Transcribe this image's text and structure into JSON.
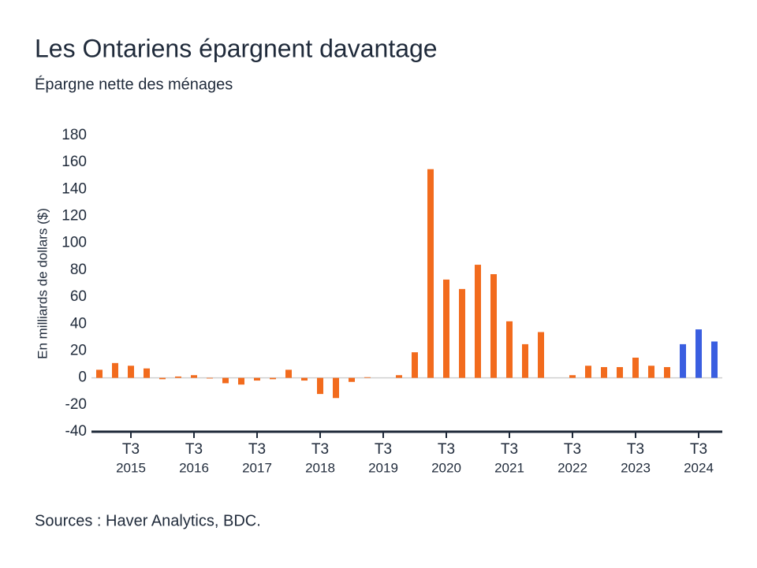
{
  "chart_data": {
    "type": "bar",
    "title": "Les Ontariens épargnent davantage",
    "subtitle": "Épargne nette des ménages",
    "y_label": "En milliards de dollars ($)",
    "source": "Sources : Haver Analytics, BDC.",
    "categories": [
      null,
      null,
      "T3",
      null,
      null,
      null,
      "T3",
      null,
      null,
      null,
      "T3",
      null,
      null,
      null,
      "T3",
      null,
      null,
      null,
      "T3",
      null,
      null,
      null,
      "T3",
      null,
      null,
      null,
      "T3",
      null,
      null,
      null,
      "T3",
      null,
      null,
      null,
      "T3",
      null,
      null,
      null,
      "T3",
      null
    ],
    "years": [
      null,
      null,
      "2015",
      null,
      null,
      null,
      "2016",
      null,
      null,
      null,
      "2017",
      null,
      null,
      null,
      "2018",
      null,
      null,
      null,
      "2019",
      null,
      null,
      null,
      "2020",
      null,
      null,
      null,
      "2021",
      null,
      null,
      null,
      "2022",
      null,
      null,
      null,
      "2023",
      null,
      null,
      null,
      "2024",
      null
    ],
    "values": [
      6,
      11,
      9,
      7,
      -1,
      1,
      2,
      -0.5,
      -4,
      -5,
      -2,
      -1,
      6,
      -2,
      -12,
      -15,
      -3,
      0.5,
      0,
      2,
      19,
      155,
      73,
      66,
      84,
      77,
      42,
      25,
      34,
      0,
      2,
      9,
      8,
      8,
      15,
      9,
      8,
      25,
      36,
      27
    ],
    "colors": [
      "#f26b1d",
      "#f26b1d",
      "#f26b1d",
      "#f26b1d",
      "#f26b1d",
      "#f26b1d",
      "#f26b1d",
      "#f26b1d",
      "#f26b1d",
      "#f26b1d",
      "#f26b1d",
      "#f26b1d",
      "#f26b1d",
      "#f26b1d",
      "#f26b1d",
      "#f26b1d",
      "#f26b1d",
      "#f26b1d",
      "#f26b1d",
      "#f26b1d",
      "#f26b1d",
      "#f26b1d",
      "#f26b1d",
      "#f26b1d",
      "#f26b1d",
      "#f26b1d",
      "#f26b1d",
      "#f26b1d",
      "#f26b1d",
      "#f26b1d",
      "#f26b1d",
      "#f26b1d",
      "#f26b1d",
      "#f26b1d",
      "#f26b1d",
      "#f26b1d",
      "#f26b1d",
      "#3a5ee0",
      "#3a5ee0",
      "#3a5ee0"
    ],
    "ylim": [
      -40,
      180
    ],
    "yticks": [
      -40,
      -20,
      0,
      20,
      40,
      60,
      80,
      100,
      120,
      140,
      160,
      180
    ],
    "grid": false
  }
}
